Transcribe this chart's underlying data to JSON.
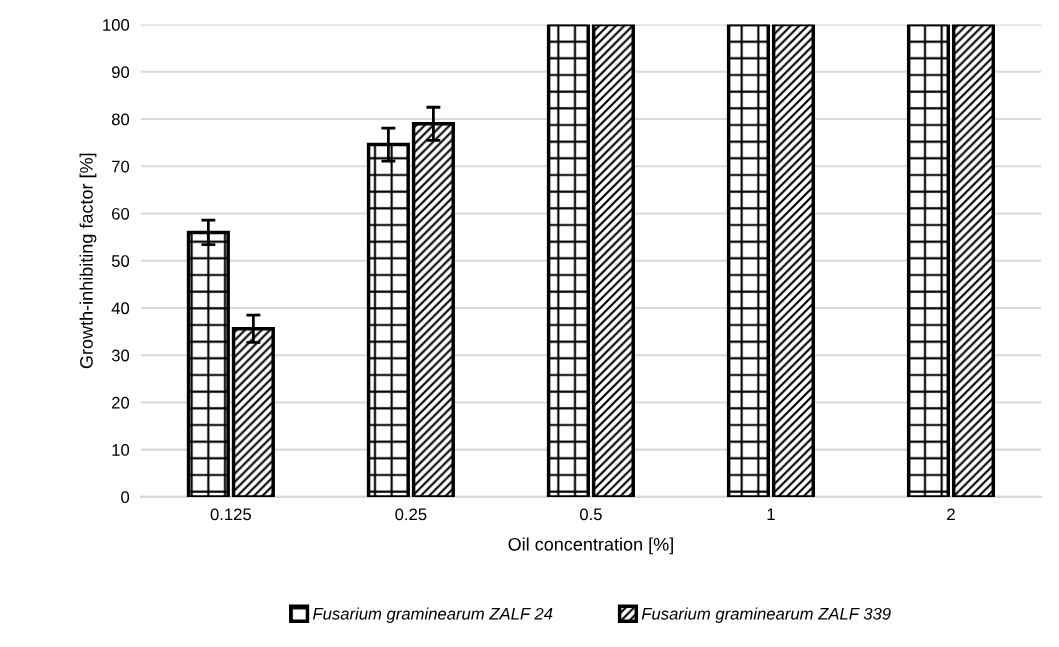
{
  "chart_data": {
    "type": "bar",
    "xlabel": "Oil concentration [%]",
    "ylabel": "Growth-inhibiting factor [%]",
    "categories": [
      "0.125",
      "0.25",
      "0.5",
      "1",
      "2"
    ],
    "series": [
      {
        "name": "Fusarium graminearum ZALF 24",
        "color": "#000000",
        "values": [
          56,
          74.6,
          100,
          100,
          100
        ],
        "errors": [
          2.6,
          3.5,
          null,
          null,
          null
        ]
      },
      {
        "name": "Fusarium graminearum ZALF 339",
        "color": "#000000",
        "values": [
          35.6,
          79,
          100,
          100,
          100
        ],
        "errors": [
          2.9,
          3.5,
          null,
          null,
          null
        ]
      }
    ],
    "ylim": [
      0,
      100
    ],
    "yticks": [
      0,
      10,
      20,
      30,
      40,
      50,
      60,
      70,
      80,
      90,
      100
    ],
    "grid": "y",
    "legend": "bottom"
  }
}
